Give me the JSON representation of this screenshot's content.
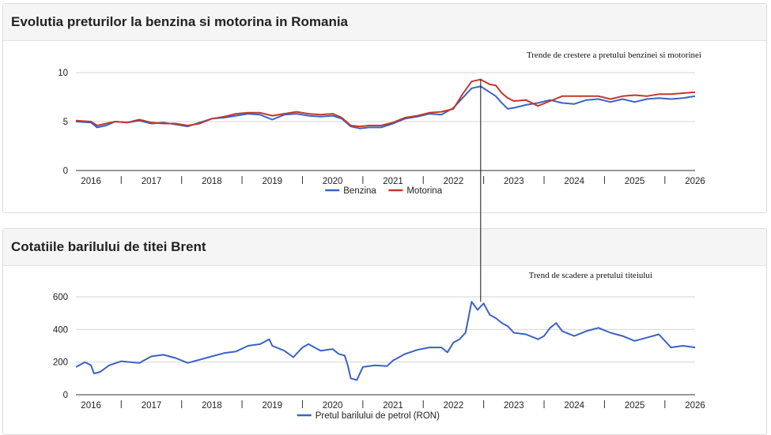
{
  "panels": {
    "fuel_title": "Evolutia preturilor la benzina si motorina in Romania",
    "brent_title": "Cotatiile barilului de titei Brent"
  },
  "chart_data": [
    {
      "type": "line",
      "title": "Evolutia preturilor la benzina si motorina in Romania",
      "annotation": "Trende de crestere a pretului benzinei si motorinei",
      "ylim": [
        0,
        10
      ],
      "yticks": [
        "0",
        "5",
        "10"
      ],
      "xlim": [
        2015.75,
        2026.0
      ],
      "xticks": [
        {
          "year": 2016,
          "label": "2016"
        },
        {
          "year": 2017,
          "label": "2017"
        },
        {
          "year": 2018,
          "label": "2018"
        },
        {
          "year": 2019,
          "label": "2019"
        },
        {
          "year": 2020,
          "label": "2020"
        },
        {
          "year": 2021,
          "label": "2021"
        },
        {
          "year": 2022,
          "label": "2022"
        },
        {
          "year": 2023,
          "label": "2023"
        },
        {
          "year": 2024,
          "label": "2024"
        },
        {
          "year": 2025,
          "label": "2025"
        },
        {
          "year": 2026,
          "label": "2026"
        }
      ],
      "grid": true,
      "legend": "bottom",
      "series": [
        {
          "name": "Benzina",
          "color": "#3a62c5",
          "x": [
            2015.75,
            2016.0,
            2016.1,
            2016.25,
            2016.4,
            2016.6,
            2016.8,
            2017.0,
            2017.2,
            2017.4,
            2017.6,
            2017.8,
            2018.0,
            2018.2,
            2018.4,
            2018.6,
            2018.8,
            2019.0,
            2019.2,
            2019.4,
            2019.6,
            2019.8,
            2020.0,
            2020.15,
            2020.3,
            2020.45,
            2020.6,
            2020.8,
            2021.0,
            2021.2,
            2021.4,
            2021.6,
            2021.8,
            2022.0,
            2022.15,
            2022.3,
            2022.45,
            2022.6,
            2022.7,
            2022.8,
            2022.9,
            2023.0,
            2023.2,
            2023.4,
            2023.6,
            2023.8,
            2024.0,
            2024.2,
            2024.4,
            2024.6,
            2024.8,
            2025.0,
            2025.2,
            2025.4,
            2025.6,
            2025.8,
            2026.0
          ],
          "values": [
            5.0,
            4.9,
            4.4,
            4.6,
            5.0,
            4.9,
            5.1,
            4.8,
            4.9,
            4.7,
            4.5,
            4.9,
            5.3,
            5.4,
            5.6,
            5.8,
            5.7,
            5.2,
            5.7,
            5.8,
            5.6,
            5.5,
            5.6,
            5.3,
            4.5,
            4.3,
            4.4,
            4.4,
            4.8,
            5.3,
            5.5,
            5.8,
            5.7,
            6.4,
            7.4,
            8.4,
            8.6,
            8.0,
            7.6,
            6.9,
            6.3,
            6.4,
            6.7,
            6.9,
            7.2,
            6.9,
            6.8,
            7.2,
            7.3,
            7.0,
            7.3,
            7.0,
            7.3,
            7.4,
            7.3,
            7.4,
            7.6
          ]
        },
        {
          "name": "Motorina",
          "color": "#c0392b",
          "x": [
            2015.75,
            2016.0,
            2016.1,
            2016.25,
            2016.4,
            2016.6,
            2016.8,
            2017.0,
            2017.2,
            2017.4,
            2017.6,
            2017.8,
            2018.0,
            2018.2,
            2018.4,
            2018.6,
            2018.8,
            2019.0,
            2019.2,
            2019.4,
            2019.6,
            2019.8,
            2020.0,
            2020.15,
            2020.3,
            2020.45,
            2020.6,
            2020.8,
            2021.0,
            2021.2,
            2021.4,
            2021.6,
            2021.8,
            2022.0,
            2022.15,
            2022.3,
            2022.45,
            2022.6,
            2022.7,
            2022.8,
            2022.9,
            2023.0,
            2023.2,
            2023.4,
            2023.6,
            2023.8,
            2024.0,
            2024.2,
            2024.4,
            2024.6,
            2024.8,
            2025.0,
            2025.2,
            2025.4,
            2025.6,
            2025.8,
            2026.0
          ],
          "values": [
            5.1,
            5.0,
            4.6,
            4.8,
            5.0,
            4.9,
            5.2,
            4.9,
            4.8,
            4.8,
            4.6,
            4.8,
            5.3,
            5.5,
            5.8,
            5.9,
            5.9,
            5.6,
            5.8,
            6.0,
            5.8,
            5.7,
            5.8,
            5.4,
            4.6,
            4.5,
            4.6,
            4.6,
            4.9,
            5.4,
            5.6,
            5.9,
            6.0,
            6.3,
            7.8,
            9.1,
            9.3,
            8.8,
            8.7,
            7.9,
            7.4,
            7.1,
            7.2,
            6.6,
            7.1,
            7.6,
            7.6,
            7.6,
            7.6,
            7.3,
            7.6,
            7.7,
            7.6,
            7.8,
            7.8,
            7.9,
            8.0
          ]
        }
      ]
    },
    {
      "type": "line",
      "title": "Cotatiile barilului de titei Brent",
      "annotation": "Trend de scadere a pretului titeiului",
      "ylim": [
        0,
        600
      ],
      "yticks": [
        "0",
        "200",
        "400",
        "600"
      ],
      "xlim": [
        2015.75,
        2026.0
      ],
      "xticks": [
        {
          "year": 2016,
          "label": "2016"
        },
        {
          "year": 2017,
          "label": "2017"
        },
        {
          "year": 2018,
          "label": "2018"
        },
        {
          "year": 2019,
          "label": "2019"
        },
        {
          "year": 2020,
          "label": "2020"
        },
        {
          "year": 2021,
          "label": "2021"
        },
        {
          "year": 2022,
          "label": "2022"
        },
        {
          "year": 2023,
          "label": "2023"
        },
        {
          "year": 2024,
          "label": "2024"
        },
        {
          "year": 2025,
          "label": "2025"
        },
        {
          "year": 2026,
          "label": "2026"
        }
      ],
      "grid": true,
      "legend": "bottom",
      "series": [
        {
          "name": "Pretul barilului de petrol (RON)",
          "color": "#3a62c5",
          "x": [
            2015.75,
            2015.9,
            2016.0,
            2016.05,
            2016.15,
            2016.3,
            2016.5,
            2016.8,
            2017.0,
            2017.2,
            2017.4,
            2017.6,
            2017.8,
            2018.0,
            2018.2,
            2018.4,
            2018.6,
            2018.8,
            2018.95,
            2019.0,
            2019.2,
            2019.35,
            2019.5,
            2019.6,
            2019.8,
            2020.0,
            2020.1,
            2020.2,
            2020.25,
            2020.3,
            2020.4,
            2020.5,
            2020.7,
            2020.9,
            2021.0,
            2021.2,
            2021.4,
            2021.6,
            2021.8,
            2021.9,
            2022.0,
            2022.1,
            2022.2,
            2022.3,
            2022.4,
            2022.5,
            2022.6,
            2022.7,
            2022.8,
            2022.9,
            2023.0,
            2023.2,
            2023.4,
            2023.5,
            2023.6,
            2023.7,
            2023.8,
            2024.0,
            2024.2,
            2024.4,
            2024.6,
            2024.8,
            2025.0,
            2025.2,
            2025.4,
            2025.6,
            2025.8,
            2026.0
          ],
          "values": [
            170,
            200,
            180,
            130,
            140,
            180,
            205,
            195,
            235,
            245,
            225,
            195,
            215,
            235,
            255,
            265,
            300,
            310,
            340,
            300,
            270,
            230,
            290,
            310,
            270,
            280,
            250,
            240,
            180,
            100,
            90,
            170,
            180,
            175,
            210,
            250,
            275,
            290,
            290,
            260,
            320,
            340,
            380,
            570,
            520,
            560,
            490,
            470,
            440,
            420,
            380,
            370,
            340,
            360,
            410,
            440,
            390,
            360,
            390,
            410,
            380,
            360,
            330,
            350,
            370,
            290,
            300,
            290
          ]
        }
      ]
    }
  ]
}
